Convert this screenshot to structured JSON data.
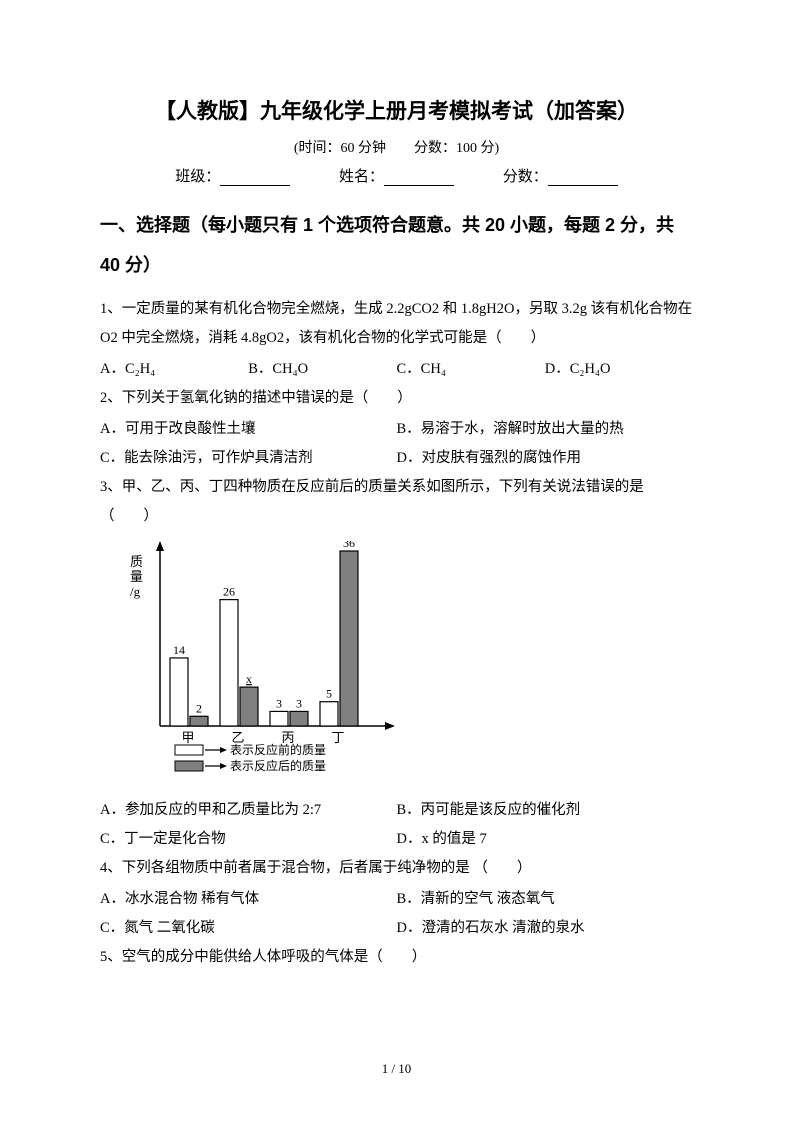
{
  "header": {
    "title": "【人教版】九年级化学上册月考模拟考试（加答案）",
    "meta": "(时间：60 分钟　　分数：100 分)",
    "class_label": "班级：",
    "name_label": "姓名：",
    "score_label": "分数："
  },
  "section1": {
    "heading": "一、选择题（每小题只有 1 个选项符合题意。共 20 小题，每题 2 分，共 40 分）"
  },
  "q1": {
    "text": "1、一定质量的某有机化合物完全燃烧，生成 2.2gCO2 和 1.8gH2O，另取 3.2g 该有机化合物在 O2 中完全燃烧，消耗 4.8gO2，该有机化合物的化学式可能是（　　）",
    "optA": "A．C₂H₄",
    "optB": "B．CH₄O",
    "optC": "C．CH₄",
    "optD": "D．C₂H₄O"
  },
  "q2": {
    "text": "2、下列关于氢氧化钠的描述中错误的是（　　）",
    "optA": "A．可用于改良酸性土壤",
    "optB": "B．易溶于水，溶解时放出大量的热",
    "optC": "C．能去除油污，可作炉具清洁剂",
    "optD": "D．对皮肤有强烈的腐蚀作用"
  },
  "q3": {
    "text": "3、甲、乙、丙、丁四种物质在反应前后的质量关系如图所示，下列有关说法错误的是（　　）",
    "optA": "A．参加反应的甲和乙质量比为 2:7",
    "optB": "B．丙可能是该反应的催化剂",
    "optC": "C．丁一定是化合物",
    "optD": "D．x 的值是 7"
  },
  "q4": {
    "text": "4、下列各组物质中前者属于混合物，后者属于纯净物的是 （　　）",
    "optA": "A．冰水混合物  稀有气体",
    "optB": "B．清新的空气  液态氧气",
    "optC": "C．氮气  二氧化碳",
    "optD": "D．澄清的石灰水  清澈的泉水"
  },
  "q5": {
    "text": "5、空气的成分中能供给人体呼吸的气体是（　　）"
  },
  "chart": {
    "type": "bar",
    "categories": [
      "甲",
      "乙",
      "丙",
      "丁"
    ],
    "before_values": [
      14,
      26,
      3,
      5
    ],
    "after_values": [
      2,
      null,
      3,
      36
    ],
    "after_label_x": "x",
    "ylabel": "质量/g",
    "legend_before": "表示反应前的质量",
    "legend_after": "表示反应后的质量",
    "bar_color_before": "#ffffff",
    "bar_color_after": "#808080",
    "border_color": "#000000",
    "max_value": 36,
    "label_fontsize": 12
  },
  "footer": {
    "page": "1 / 10"
  }
}
